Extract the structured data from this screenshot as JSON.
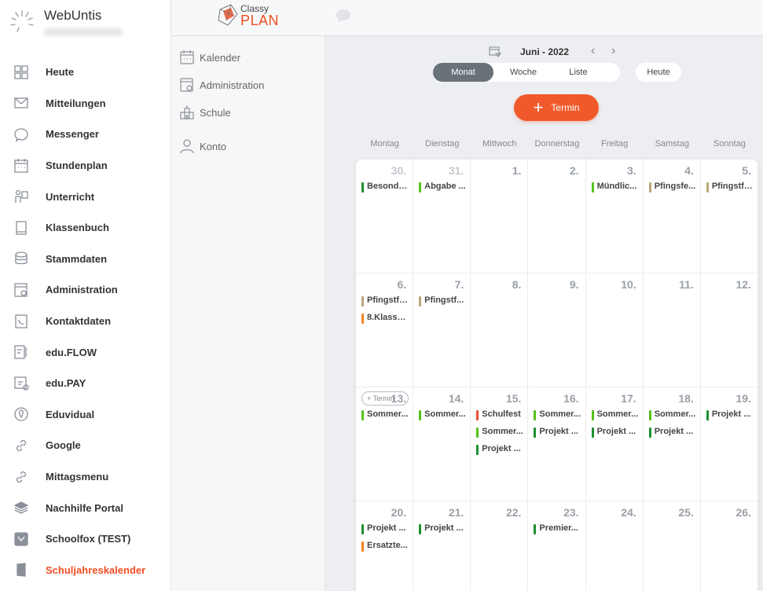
{
  "app": {
    "title": "WebUntis"
  },
  "sidebar": {
    "items": [
      {
        "label": "Heute",
        "icon": "dashboard-icon"
      },
      {
        "label": "Mitteilungen",
        "icon": "mail-icon"
      },
      {
        "label": "Messenger",
        "icon": "chat-bubble-icon"
      },
      {
        "label": "Stundenplan",
        "icon": "calendar-grid-icon"
      },
      {
        "label": "Unterricht",
        "icon": "teacher-board-icon"
      },
      {
        "label": "Klassenbuch",
        "icon": "book-icon"
      },
      {
        "label": "Stammdaten",
        "icon": "database-icon"
      },
      {
        "label": "Administration",
        "icon": "admin-settings-icon"
      },
      {
        "label": "Kontaktdaten",
        "icon": "contact-icon"
      },
      {
        "label": "edu.FLOW",
        "icon": "flow-icon"
      },
      {
        "label": "edu.PAY",
        "icon": "pay-icon"
      },
      {
        "label": "Eduvidual",
        "icon": "location-pin-icon"
      },
      {
        "label": "Google",
        "icon": "link-icon"
      },
      {
        "label": "Mittagsmenu",
        "icon": "link-icon"
      },
      {
        "label": "Nachhilfe Portal",
        "icon": "layers-icon"
      },
      {
        "label": "Schoolfox (TEST)",
        "icon": "fox-icon"
      },
      {
        "label": "Schuljahreskalender",
        "icon": "book-solid-icon",
        "active": true
      }
    ]
  },
  "header": {
    "logo_top": "Classy",
    "logo_bottom": "PLAN"
  },
  "subnav": {
    "items": [
      {
        "label": "Kalender"
      },
      {
        "label": "Administration"
      },
      {
        "label": "Schule"
      },
      {
        "label": "Konto"
      }
    ]
  },
  "calendar": {
    "month_label": "Juni - 2022",
    "prev": "‹",
    "next": "›",
    "views": [
      "Monat",
      "Woche",
      "Liste"
    ],
    "active_view": "Monat",
    "today_label": "Heute",
    "add_label": "Termin",
    "quick_add_label": "Termin",
    "weekdays": [
      "Montag",
      "Dienstag",
      "Mittwoch",
      "Donnerstag",
      "Freitag",
      "Samstag",
      "Sonntag"
    ],
    "colors": {
      "green": "#55c21b",
      "darkgreen": "#1f8f2f",
      "olive": "#b8a77a",
      "orange": "#f58220",
      "red": "#e8533a"
    },
    "weeks": [
      [
        {
          "day": "30.",
          "muted": true,
          "events": [
            {
              "t": "Besonde...",
              "c": "darkgreen"
            }
          ]
        },
        {
          "day": "31.",
          "muted": true,
          "events": [
            {
              "t": "Abgabe ...",
              "c": "green"
            }
          ]
        },
        {
          "day": "1.",
          "events": []
        },
        {
          "day": "2.",
          "events": []
        },
        {
          "day": "3.",
          "events": [
            {
              "t": "Mündlic...",
              "c": "green"
            }
          ]
        },
        {
          "day": "4.",
          "events": [
            {
              "t": "Pfingsfe...",
              "c": "olive"
            }
          ]
        },
        {
          "day": "5.",
          "events": [
            {
              "t": "Pfingstfe...",
              "c": "olive"
            }
          ]
        }
      ],
      [
        {
          "day": "6.",
          "events": [
            {
              "t": "Pfingstfe...",
              "c": "olive"
            },
            {
              "t": "8.Klasse ...",
              "c": "orange"
            }
          ]
        },
        {
          "day": "7.",
          "events": [
            {
              "t": "Pfingstf...",
              "c": "olive"
            }
          ]
        },
        {
          "day": "8.",
          "events": []
        },
        {
          "day": "9.",
          "events": []
        },
        {
          "day": "10.",
          "events": []
        },
        {
          "day": "11.",
          "events": []
        },
        {
          "day": "12.",
          "events": []
        }
      ],
      [
        {
          "day": "13.",
          "quickadd": true,
          "events": [
            {
              "t": "Sommer...",
              "c": "green"
            }
          ]
        },
        {
          "day": "14.",
          "events": [
            {
              "t": "Sommer...",
              "c": "green"
            }
          ]
        },
        {
          "day": "15.",
          "events": [
            {
              "t": "Schulfest",
              "c": "red"
            },
            {
              "t": "Sommer...",
              "c": "green"
            },
            {
              "t": "Projekt ...",
              "c": "darkgreen"
            }
          ]
        },
        {
          "day": "16.",
          "events": [
            {
              "t": "Sommer...",
              "c": "green"
            },
            {
              "t": "Projekt ...",
              "c": "darkgreen"
            }
          ]
        },
        {
          "day": "17.",
          "events": [
            {
              "t": "Sommer...",
              "c": "green"
            },
            {
              "t": "Projekt ...",
              "c": "darkgreen"
            }
          ]
        },
        {
          "day": "18.",
          "events": [
            {
              "t": "Sommer...",
              "c": "green"
            },
            {
              "t": "Projekt ...",
              "c": "darkgreen"
            }
          ]
        },
        {
          "day": "19.",
          "events": [
            {
              "t": "Projekt ...",
              "c": "darkgreen"
            }
          ]
        }
      ],
      [
        {
          "day": "20.",
          "events": [
            {
              "t": "Projekt ...",
              "c": "darkgreen"
            },
            {
              "t": "Ersatzte...",
              "c": "orange"
            }
          ]
        },
        {
          "day": "21.",
          "events": [
            {
              "t": "Projekt ...",
              "c": "darkgreen"
            }
          ]
        },
        {
          "day": "22.",
          "events": []
        },
        {
          "day": "23.",
          "events": [
            {
              "t": "Premier...",
              "c": "darkgreen"
            }
          ]
        },
        {
          "day": "24.",
          "events": []
        },
        {
          "day": "25.",
          "events": []
        },
        {
          "day": "26.",
          "events": []
        }
      ]
    ]
  }
}
